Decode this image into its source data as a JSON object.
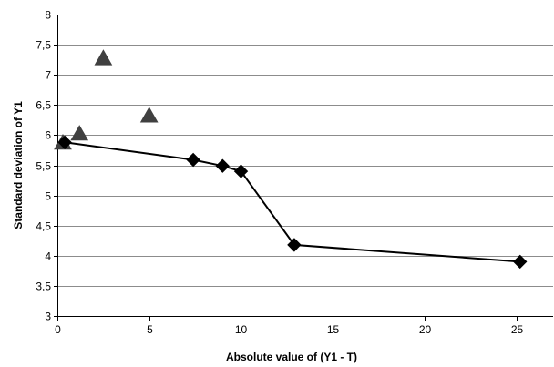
{
  "chart_data": {
    "type": "scatter",
    "title": "",
    "xlabel": "Absolute value of  (Y1 - T)",
    "ylabel": "Standard deviation of Y1",
    "xlim": [
      0,
      27
    ],
    "ylim": [
      3,
      8
    ],
    "x_ticks": [
      0,
      5,
      10,
      15,
      20,
      25
    ],
    "y_ticks": [
      3,
      3.5,
      4,
      4.5,
      5,
      5.5,
      6,
      6.5,
      7,
      7.5,
      8
    ],
    "y_tick_labels": [
      "3",
      "3,5",
      "4",
      "4,5",
      "5",
      "5,5",
      "6",
      "6,5",
      "7",
      "7,5",
      "8"
    ],
    "grid": "horizontal",
    "legend": "none",
    "series": [
      {
        "marker": "triangle",
        "line": false,
        "color": "#404040",
        "points": [
          {
            "x": 0.3,
            "y": 5.87
          },
          {
            "x": 1.2,
            "y": 6.02
          },
          {
            "x": 2.5,
            "y": 7.27
          },
          {
            "x": 5.0,
            "y": 6.32
          }
        ]
      },
      {
        "marker": "diamond",
        "line": true,
        "color": "#000000",
        "points": [
          {
            "x": 0.4,
            "y": 5.88
          },
          {
            "x": 7.4,
            "y": 5.59
          },
          {
            "x": 9.0,
            "y": 5.49
          },
          {
            "x": 10.0,
            "y": 5.4
          },
          {
            "x": 12.9,
            "y": 4.18
          },
          {
            "x": 25.2,
            "y": 3.9
          }
        ]
      }
    ]
  }
}
